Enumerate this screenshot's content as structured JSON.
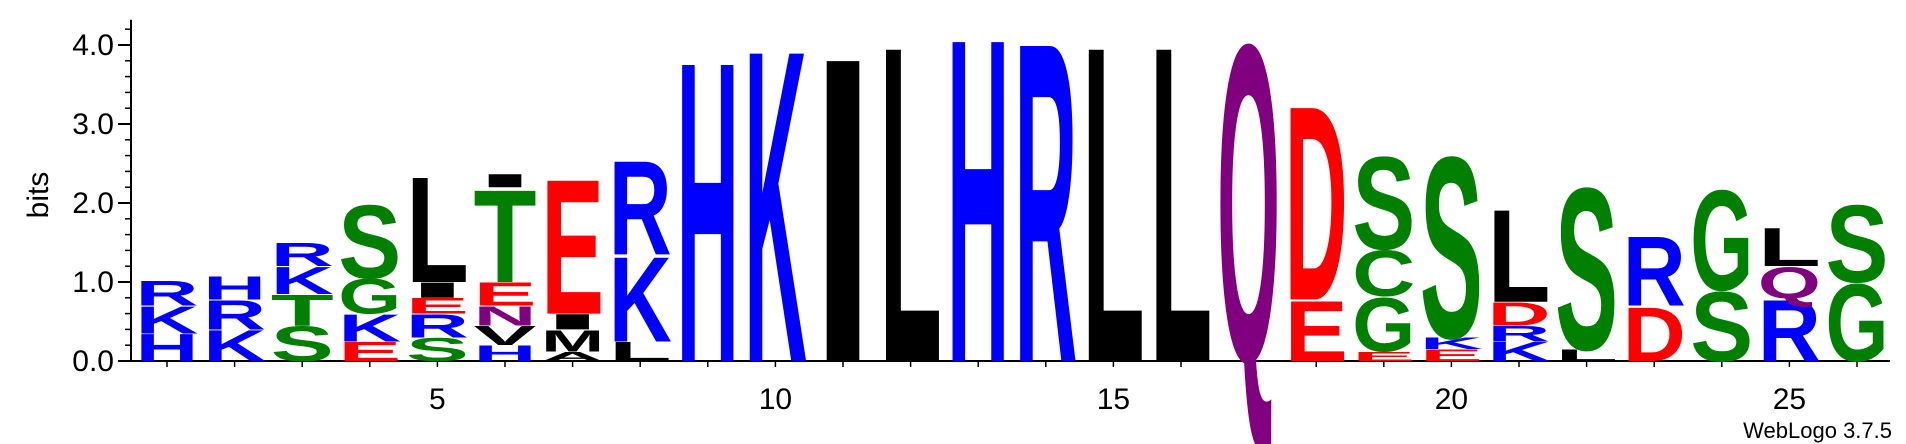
{
  "chart_data": {
    "type": "sequence-logo",
    "ylabel": "bits",
    "ylim": [
      0,
      4.32
    ],
    "y_ticks": [
      "0.0",
      "1.0",
      "2.0",
      "3.0",
      "4.0"
    ],
    "x_ticks": [
      "5",
      "10",
      "15",
      "20",
      "25"
    ],
    "x_tick_positions": [
      5,
      10,
      15,
      20,
      25
    ],
    "num_positions": 26,
    "credit": "WebLogo 3.7.5",
    "colors": {
      "H": "#0000ff",
      "K": "#0000ff",
      "R": "#0000ff",
      "I": "#000000",
      "L": "#000000",
      "M": "#000000",
      "A": "#000000",
      "V": "#000000",
      "Q": "#800080",
      "N": "#800080",
      "D": "#ff0000",
      "E": "#ff0000",
      "S": "#008000",
      "G": "#008000",
      "T": "#008000",
      "Y": "#008000",
      "C": "#008000"
    },
    "positions": [
      {
        "pos": 1,
        "stack": [
          {
            "letter": "H",
            "bits": 0.35
          },
          {
            "letter": "K",
            "bits": 0.35
          },
          {
            "letter": "R",
            "bits": 0.32
          }
        ]
      },
      {
        "pos": 2,
        "stack": [
          {
            "letter": "K",
            "bits": 0.4
          },
          {
            "letter": "R",
            "bits": 0.38
          },
          {
            "letter": "H",
            "bits": 0.3
          }
        ]
      },
      {
        "pos": 3,
        "stack": [
          {
            "letter": "S",
            "bits": 0.45
          },
          {
            "letter": "T",
            "bits": 0.4
          },
          {
            "letter": "K",
            "bits": 0.35
          },
          {
            "letter": "R",
            "bits": 0.3
          }
        ]
      },
      {
        "pos": 4,
        "stack": [
          {
            "letter": "E",
            "bits": 0.25
          },
          {
            "letter": "K",
            "bits": 0.35
          },
          {
            "letter": "G",
            "bits": 0.45
          },
          {
            "letter": "S",
            "bits": 0.95
          }
        ]
      },
      {
        "pos": 5,
        "stack": [
          {
            "letter": "S",
            "bits": 0.3
          },
          {
            "letter": "R",
            "bits": 0.3
          },
          {
            "letter": "E",
            "bits": 0.2
          },
          {
            "letter": "I",
            "bits": 0.2
          },
          {
            "letter": "L",
            "bits": 1.37
          }
        ]
      },
      {
        "pos": 6,
        "stack": [
          {
            "letter": "H",
            "bits": 0.2
          },
          {
            "letter": "V",
            "bits": 0.25
          },
          {
            "letter": "N",
            "bits": 0.25
          },
          {
            "letter": "E",
            "bits": 0.3
          },
          {
            "letter": "T",
            "bits": 1.2
          },
          {
            "letter": "I",
            "bits": 0.17
          }
        ]
      },
      {
        "pos": 7,
        "stack": [
          {
            "letter": "A",
            "bits": 0.12
          },
          {
            "letter": "M",
            "bits": 0.28
          },
          {
            "letter": "I",
            "bits": 0.2
          },
          {
            "letter": "E",
            "bits": 1.75
          }
        ]
      },
      {
        "pos": 8,
        "stack": [
          {
            "letter": "L",
            "bits": 0.25
          },
          {
            "letter": "K",
            "bits": 1.1
          },
          {
            "letter": "R",
            "bits": 1.22
          }
        ]
      },
      {
        "pos": 9,
        "stack": [
          {
            "letter": "H",
            "bits": 3.9
          }
        ]
      },
      {
        "pos": 10,
        "stack": [
          {
            "letter": "K",
            "bits": 4.05
          }
        ]
      },
      {
        "pos": 11,
        "stack": [
          {
            "letter": "I",
            "bits": 3.95
          }
        ]
      },
      {
        "pos": 12,
        "stack": [
          {
            "letter": "L",
            "bits": 4.1
          }
        ]
      },
      {
        "pos": 13,
        "stack": [
          {
            "letter": "H",
            "bits": 4.2
          }
        ]
      },
      {
        "pos": 14,
        "stack": [
          {
            "letter": "R",
            "bits": 4.15
          }
        ]
      },
      {
        "pos": 15,
        "stack": [
          {
            "letter": "L",
            "bits": 4.1
          }
        ]
      },
      {
        "pos": 16,
        "stack": [
          {
            "letter": "L",
            "bits": 4.1
          }
        ]
      },
      {
        "pos": 17,
        "stack": [
          {
            "letter": "Q",
            "bits": 4.12
          }
        ]
      },
      {
        "pos": 18,
        "stack": [
          {
            "letter": "E",
            "bits": 0.78
          },
          {
            "letter": "D",
            "bits": 2.52
          }
        ]
      },
      {
        "pos": 19,
        "stack": [
          {
            "letter": "E",
            "bits": 0.12
          },
          {
            "letter": "G",
            "bits": 0.7
          },
          {
            "letter": "C",
            "bits": 0.6
          },
          {
            "letter": "S",
            "bits": 1.2
          }
        ]
      },
      {
        "pos": 20,
        "stack": [
          {
            "letter": "E",
            "bits": 0.15
          },
          {
            "letter": "K",
            "bits": 0.15
          },
          {
            "letter": "S",
            "bits": 2.35
          }
        ]
      },
      {
        "pos": 21,
        "stack": [
          {
            "letter": "K",
            "bits": 0.25
          },
          {
            "letter": "R",
            "bits": 0.2
          },
          {
            "letter": "D",
            "bits": 0.3
          },
          {
            "letter": "L",
            "bits": 1.2
          }
        ]
      },
      {
        "pos": 22,
        "stack": [
          {
            "letter": "L",
            "bits": 0.15
          },
          {
            "letter": "S",
            "bits": 2.1
          }
        ]
      },
      {
        "pos": 23,
        "stack": [
          {
            "letter": "D",
            "bits": 0.7
          },
          {
            "letter": "R",
            "bits": 0.9
          }
        ]
      },
      {
        "pos": 24,
        "stack": [
          {
            "letter": "S",
            "bits": 0.9
          },
          {
            "letter": "G",
            "bits": 1.3
          }
        ]
      },
      {
        "pos": 25,
        "stack": [
          {
            "letter": "R",
            "bits": 0.8
          },
          {
            "letter": "Q",
            "bits": 0.4
          },
          {
            "letter": "L",
            "bits": 0.5
          }
        ]
      },
      {
        "pos": 26,
        "stack": [
          {
            "letter": "G",
            "bits": 1.0
          },
          {
            "letter": "S",
            "bits": 1.0
          }
        ]
      }
    ]
  }
}
